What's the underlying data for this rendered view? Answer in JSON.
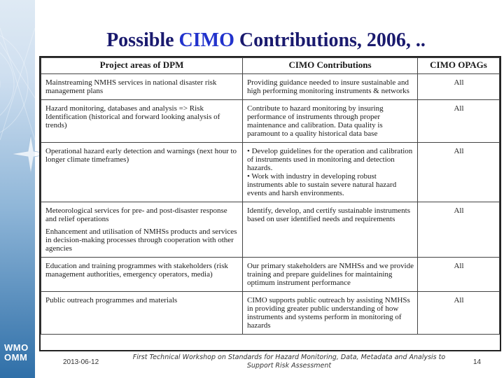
{
  "slide": {
    "title_prefix": "Possible ",
    "title_accent": "CIMO",
    "title_suffix": " Contributions, 2006, ..",
    "logo_line1": "WMO",
    "logo_line2": "OMM"
  },
  "table": {
    "headers": [
      "Project areas of DPM",
      "CIMO Contributions",
      "CIMO OPAGs"
    ],
    "rows": [
      {
        "project": [
          "Mainstreaming NMHS services in national disaster risk management plans"
        ],
        "contribution": [
          "Providing guidance needed to insure sustainable and high performing monitoring instruments & networks"
        ],
        "opags": "All"
      },
      {
        "project": [
          "Hazard monitoring, databases and analysis => Risk Identification (historical and forward looking analysis of trends)"
        ],
        "contribution": [
          "Contribute to hazard monitoring by insuring performance of instruments through proper maintenance and calibration. Data quality is paramount to a quality historical data base"
        ],
        "opags": "All"
      },
      {
        "project": [
          "Operational hazard early detection and warnings (next hour to longer climate timeframes)"
        ],
        "contribution": [
          "• Develop guidelines for the operation and calibration of instruments used in monitoring and detection hazards.",
          "• Work with industry in developing robust instruments able to sustain severe natural hazard events and harsh environments."
        ],
        "opags": "All"
      },
      {
        "project": [
          "Meteorological services for pre- and post-disaster response and relief operations",
          "Enhancement and utilisation of NMHSs products and services in decision-making processes through cooperation with other agencies"
        ],
        "contribution": [
          "Identify, develop, and certify sustainable instruments based on user identified needs and requirements"
        ],
        "opags": "All"
      },
      {
        "project": [
          "Education and training programmes with stakeholders (risk management authorities, emergency operators, media)"
        ],
        "contribution": [
          "Our primary stakeholders are NMHSs and we provide training and prepare guidelines for maintaining optimum instrument performance"
        ],
        "opags": "All"
      },
      {
        "project": [
          "Public outreach programmes and materials"
        ],
        "contribution": [
          "CIMO supports public outreach by assisting NMHSs in providing greater public understanding of how instruments and systems perform in monitoring of hazards"
        ],
        "opags": "All"
      }
    ]
  },
  "footer": {
    "date": "2013-06-12",
    "workshop": "First Technical Workshop on Standards for Hazard Monitoring, Data, Metadata and Analysis to Support Risk Assessment",
    "page": "14"
  }
}
